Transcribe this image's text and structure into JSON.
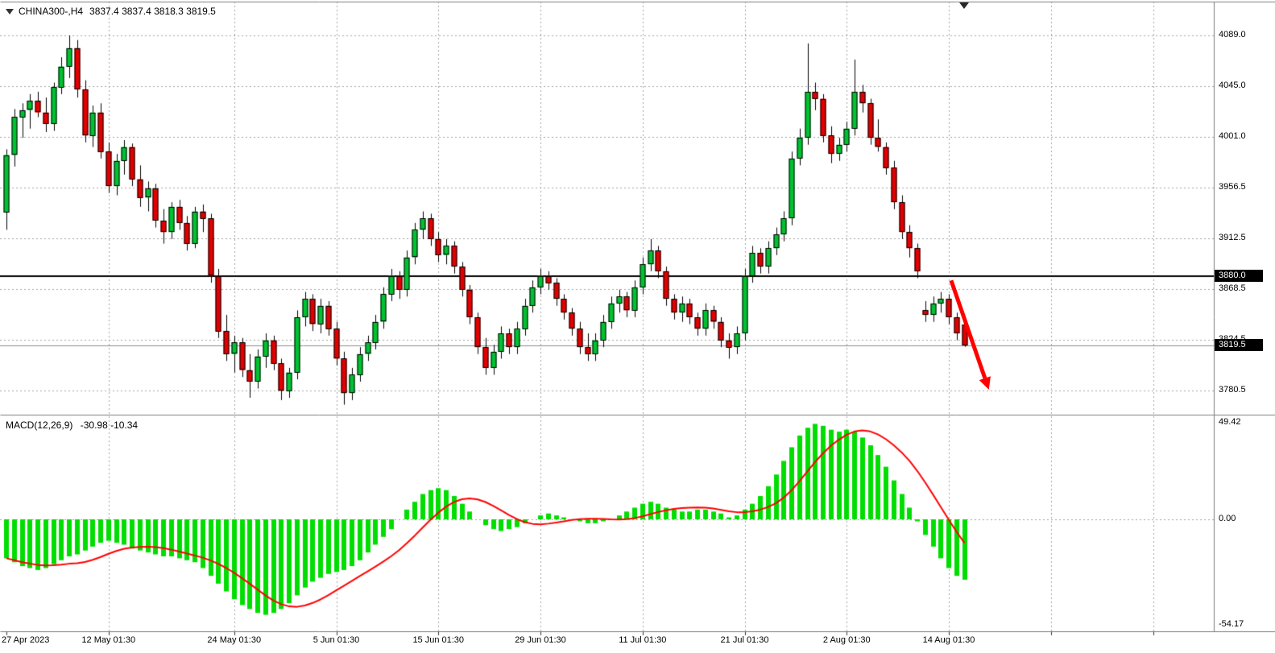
{
  "header": {
    "symbol_period": "CHINA300-,H4",
    "ohlc": "3837.4 3837.4 3818.3 3819.5"
  },
  "colors": {
    "background": "#ffffff",
    "up": "#00c232",
    "down": "#e30000",
    "candle_border": "#000000",
    "wick": "#000000",
    "grid": "#a3a3a3",
    "panel_border": "#7d7d7d",
    "hline": "#000000",
    "current_price_line": "#8c8c8c",
    "macd_histogram": "#00dd00",
    "macd_signal": "#ff0000",
    "badge_bg": "#000000",
    "badge_fg": "#ffffff",
    "arrow": "#ff0000",
    "text": "#000000"
  },
  "chart_data": {
    "type": "candlestick",
    "symbol": "CHINA300-",
    "timeframe": "H4",
    "current_bar": {
      "open": 3837.4,
      "high": 3837.4,
      "low": 3818.3,
      "close": 3819.5
    },
    "price_panel": {
      "ylim": [
        3759,
        4118
      ],
      "grid_levels": [
        {
          "v": 4089.0,
          "label": "4089.0"
        },
        {
          "v": 4045.0,
          "label": "4045.0"
        },
        {
          "v": 4001.0,
          "label": "4001.0"
        },
        {
          "v": 3956.5,
          "label": "3956.5"
        },
        {
          "v": 3912.5,
          "label": "3912.5"
        },
        {
          "v": 3868.5,
          "label": "3868.5"
        },
        {
          "v": 3824.5,
          "label": "3824.5"
        },
        {
          "v": 3780.5,
          "label": "3780.5"
        }
      ],
      "horizontal_line": {
        "v": 3880.0,
        "label": "3880.0"
      },
      "current_price": {
        "v": 3819.5,
        "label": "3819.5"
      },
      "candles": [
        [
          3935,
          3990,
          3920,
          3985
        ],
        [
          3985,
          4025,
          3975,
          4018
        ],
        [
          4018,
          4030,
          4000,
          4024
        ],
        [
          4024,
          4038,
          4008,
          4032
        ],
        [
          4032,
          4040,
          4018,
          4022
        ],
        [
          4022,
          4035,
          4005,
          4012
        ],
        [
          4012,
          4048,
          4006,
          4044
        ],
        [
          4044,
          4070,
          4038,
          4062
        ],
        [
          4062,
          4089,
          4052,
          4078
        ],
        [
          4078,
          4085,
          4035,
          4042
        ],
        [
          4042,
          4050,
          3996,
          4002
        ],
        [
          4002,
          4028,
          3992,
          4022
        ],
        [
          4022,
          4030,
          3982,
          3988
        ],
        [
          3988,
          3996,
          3952,
          3958
        ],
        [
          3958,
          3986,
          3950,
          3980
        ],
        [
          3980,
          3998,
          3968,
          3992
        ],
        [
          3992,
          3995,
          3958,
          3964
        ],
        [
          3964,
          3976,
          3940,
          3948
        ],
        [
          3948,
          3962,
          3936,
          3956
        ],
        [
          3956,
          3960,
          3922,
          3928
        ],
        [
          3928,
          3938,
          3908,
          3918
        ],
        [
          3918,
          3944,
          3912,
          3940
        ],
        [
          3940,
          3946,
          3920,
          3926
        ],
        [
          3926,
          3932,
          3902,
          3908
        ],
        [
          3908,
          3940,
          3904,
          3936
        ],
        [
          3936,
          3942,
          3918,
          3930
        ],
        [
          3930,
          3934,
          3874,
          3880
        ],
        [
          3880,
          3886,
          3826,
          3832
        ],
        [
          3832,
          3846,
          3806,
          3812
        ],
        [
          3812,
          3828,
          3796,
          3822
        ],
        [
          3822,
          3826,
          3792,
          3798
        ],
        [
          3798,
          3812,
          3774,
          3788
        ],
        [
          3788,
          3816,
          3782,
          3810
        ],
        [
          3810,
          3830,
          3800,
          3824
        ],
        [
          3824,
          3828,
          3798,
          3804
        ],
        [
          3804,
          3808,
          3772,
          3780
        ],
        [
          3780,
          3800,
          3774,
          3796
        ],
        [
          3796,
          3850,
          3790,
          3844
        ],
        [
          3844,
          3866,
          3836,
          3860
        ],
        [
          3860,
          3864,
          3832,
          3838
        ],
        [
          3838,
          3860,
          3830,
          3854
        ],
        [
          3854,
          3858,
          3828,
          3834
        ],
        [
          3834,
          3840,
          3802,
          3808
        ],
        [
          3808,
          3814,
          3768,
          3778
        ],
        [
          3778,
          3800,
          3772,
          3794
        ],
        [
          3794,
          3818,
          3788,
          3812
        ],
        [
          3812,
          3828,
          3806,
          3822
        ],
        [
          3822,
          3846,
          3816,
          3840
        ],
        [
          3840,
          3870,
          3834,
          3864
        ],
        [
          3864,
          3886,
          3858,
          3880
        ],
        [
          3880,
          3884,
          3860,
          3868
        ],
        [
          3868,
          3902,
          3862,
          3896
        ],
        [
          3896,
          3926,
          3890,
          3920
        ],
        [
          3920,
          3936,
          3912,
          3930
        ],
        [
          3930,
          3934,
          3906,
          3912
        ],
        [
          3912,
          3918,
          3892,
          3898
        ],
        [
          3898,
          3912,
          3890,
          3906
        ],
        [
          3906,
          3910,
          3882,
          3888
        ],
        [
          3888,
          3892,
          3862,
          3868
        ],
        [
          3868,
          3872,
          3838,
          3844
        ],
        [
          3844,
          3848,
          3812,
          3818
        ],
        [
          3818,
          3826,
          3794,
          3800
        ],
        [
          3800,
          3820,
          3794,
          3814
        ],
        [
          3814,
          3836,
          3808,
          3830
        ],
        [
          3830,
          3834,
          3812,
          3818
        ],
        [
          3818,
          3840,
          3812,
          3834
        ],
        [
          3834,
          3860,
          3828,
          3854
        ],
        [
          3854,
          3876,
          3848,
          3870
        ],
        [
          3870,
          3886,
          3864,
          3880
        ],
        [
          3880,
          3884,
          3868,
          3874
        ],
        [
          3874,
          3878,
          3854,
          3860
        ],
        [
          3860,
          3864,
          3842,
          3848
        ],
        [
          3848,
          3852,
          3828,
          3834
        ],
        [
          3834,
          3840,
          3812,
          3818
        ],
        [
          3818,
          3830,
          3806,
          3812
        ],
        [
          3812,
          3830,
          3806,
          3824
        ],
        [
          3824,
          3846,
          3818,
          3840
        ],
        [
          3840,
          3862,
          3834,
          3856
        ],
        [
          3856,
          3868,
          3848,
          3862
        ],
        [
          3862,
          3866,
          3844,
          3850
        ],
        [
          3850,
          3876,
          3844,
          3870
        ],
        [
          3870,
          3896,
          3864,
          3890
        ],
        [
          3890,
          3912,
          3884,
          3902
        ],
        [
          3902,
          3906,
          3878,
          3884
        ],
        [
          3884,
          3888,
          3854,
          3860
        ],
        [
          3860,
          3864,
          3842,
          3848
        ],
        [
          3848,
          3862,
          3840,
          3856
        ],
        [
          3856,
          3860,
          3838,
          3844
        ],
        [
          3844,
          3848,
          3828,
          3834
        ],
        [
          3834,
          3856,
          3828,
          3850
        ],
        [
          3850,
          3854,
          3834,
          3840
        ],
        [
          3840,
          3844,
          3818,
          3824
        ],
        [
          3824,
          3830,
          3808,
          3818
        ],
        [
          3818,
          3836,
          3812,
          3830
        ],
        [
          3830,
          3886,
          3824,
          3880
        ],
        [
          3880,
          3906,
          3874,
          3900
        ],
        [
          3900,
          3904,
          3882,
          3888
        ],
        [
          3888,
          3910,
          3882,
          3904
        ],
        [
          3904,
          3922,
          3898,
          3916
        ],
        [
          3916,
          3936,
          3910,
          3930
        ],
        [
          3930,
          3988,
          3924,
          3982
        ],
        [
          3982,
          4008,
          3976,
          4000
        ],
        [
          4000,
          4082,
          3994,
          4040
        ],
        [
          4040,
          4048,
          4024,
          4034
        ],
        [
          4034,
          4038,
          3996,
          4002
        ],
        [
          4002,
          4010,
          3978,
          3986
        ],
        [
          3986,
          4000,
          3980,
          3994
        ],
        [
          3994,
          4014,
          3988,
          4008
        ],
        [
          4008,
          4068,
          4002,
          4040
        ],
        [
          4040,
          4046,
          4022,
          4030
        ],
        [
          4030,
          4034,
          3994,
          4000
        ],
        [
          4000,
          4016,
          3988,
          3992
        ],
        [
          3992,
          3996,
          3968,
          3974
        ],
        [
          3974,
          3980,
          3938,
          3944
        ],
        [
          3944,
          3950,
          3912,
          3918
        ],
        [
          3918,
          3924,
          3896,
          3904
        ],
        [
          3904,
          3908,
          3878,
          3884
        ],
        [
          3850,
          3858,
          3840,
          3846
        ],
        [
          3846,
          3862,
          3840,
          3856
        ],
        [
          3856,
          3866,
          3848,
          3860
        ],
        [
          3860,
          3864,
          3838,
          3844
        ],
        [
          3844,
          3848,
          3824,
          3830
        ],
        [
          3837.4,
          3837.4,
          3818.3,
          3819.5
        ]
      ]
    },
    "macd_panel": {
      "label": "MACD(12,26,9)",
      "params": [
        12,
        26,
        9
      ],
      "current_text": "-30.98 -10.34",
      "current_macd": -30.98,
      "current_signal": -10.34,
      "signal_period": 9,
      "ylim": [
        -58,
        52
      ],
      "axis_labels": [
        {
          "v": 49.42,
          "label": "49.42"
        },
        {
          "v": 0,
          "label": "0.00"
        },
        {
          "v": -54.17,
          "label": "-54.17"
        }
      ],
      "histogram": [
        -20,
        -22,
        -24,
        -25,
        -26,
        -25,
        -23,
        -21,
        -19,
        -18,
        -16,
        -14,
        -12,
        -11,
        -12,
        -13,
        -15,
        -16,
        -17,
        -18,
        -19,
        -19,
        -20,
        -21,
        -22,
        -25,
        -29,
        -33,
        -37,
        -41,
        -44,
        -46,
        -48,
        -49,
        -48,
        -46,
        -43,
        -39,
        -35,
        -32,
        -30,
        -28,
        -27,
        -26,
        -24,
        -21,
        -17,
        -13,
        -9,
        -5,
        0,
        5,
        9,
        13,
        15,
        16,
        15,
        12,
        8,
        4,
        0,
        -3,
        -5,
        -6,
        -5,
        -4,
        -2,
        0,
        2,
        3,
        2,
        1,
        0,
        -1,
        -2,
        -2,
        -1,
        0,
        2,
        4,
        6,
        8,
        9,
        8,
        6,
        5,
        4,
        4,
        5,
        5,
        4,
        3,
        1,
        2,
        5,
        8,
        12,
        17,
        23,
        30,
        37,
        43,
        47,
        49,
        48,
        46,
        45,
        46,
        45,
        42,
        38,
        33,
        27,
        20,
        13,
        6,
        -1,
        -8,
        -14,
        -20,
        -25,
        -29,
        -30.98
      ]
    },
    "x_axis": {
      "labels": [
        {
          "text": "27 Apr 2023",
          "bar": 0,
          "align": "left"
        },
        {
          "text": "12 May 01:30",
          "bar": 13
        },
        {
          "text": "24 May 01:30",
          "bar": 29
        },
        {
          "text": "5 Jun 01:30",
          "bar": 42
        },
        {
          "text": "15 Jun 01:30",
          "bar": 55
        },
        {
          "text": "29 Jun 01:30",
          "bar": 68
        },
        {
          "text": "11 Jul 01:30",
          "bar": 81
        },
        {
          "text": "21 Jul 01:30",
          "bar": 94
        },
        {
          "text": "2 Aug 01:30",
          "bar": 107
        },
        {
          "text": "14 Aug 01:30",
          "bar": 120
        }
      ],
      "extra_gridlines": [
        133,
        146
      ]
    }
  },
  "annotation": {
    "arrow": {
      "from": {
        "bar": 120.3,
        "price": 3876
      },
      "to": {
        "bar": 124.6,
        "price": 3791
      },
      "color": "#ff0000",
      "width": 5
    }
  }
}
